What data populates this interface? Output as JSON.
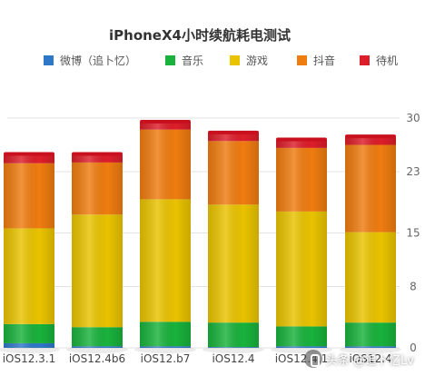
{
  "chart_data": {
    "type": "bar",
    "stacked": true,
    "title": "iPhoneX4小时续航耗电测试",
    "categories": [
      "iOS12.3.1",
      "iOS12.4b6",
      "iOS12.b7",
      "iOS12.4",
      "iOS12.4.1",
      "iOS12.4"
    ],
    "series": [
      {
        "name": "微博（追卜忆）",
        "color": "#2f78c8",
        "values": [
          0.6,
          0.2,
          0.2,
          0.1,
          0.2,
          0.2
        ]
      },
      {
        "name": "音乐",
        "color": "#19b23c",
        "values": [
          2.5,
          2.5,
          3.2,
          3.2,
          2.6,
          3.1
        ]
      },
      {
        "name": "游戏",
        "color": "#e9c300",
        "values": [
          12.5,
          14.7,
          16.0,
          15.4,
          15.0,
          11.8
        ]
      },
      {
        "name": "抖音",
        "color": "#ef7c10",
        "values": [
          8.5,
          6.8,
          9.1,
          8.3,
          8.3,
          11.4
        ]
      },
      {
        "name": "待机",
        "color": "#dc1e2a",
        "values": [
          1.1,
          1.0,
          0.9,
          1.0,
          1.0,
          1.0
        ]
      }
    ],
    "y_ticks": [
      0,
      8,
      15,
      23,
      30
    ],
    "ylim": [
      0,
      30
    ],
    "grid": true,
    "legend_position": "top"
  },
  "watermark": {
    "text": "头条 @追卜忆Lv"
  }
}
